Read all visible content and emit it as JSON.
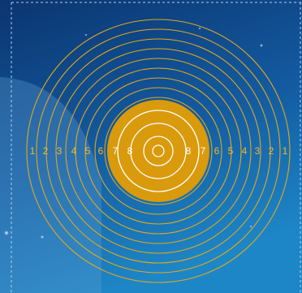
{
  "target": {
    "rings_left": [
      "1",
      "2",
      "3",
      "4",
      "5",
      "6",
      "7",
      "8"
    ],
    "rings_right": [
      "8",
      "7",
      "6",
      "5",
      "4",
      "3",
      "2",
      "1"
    ],
    "colors": {
      "ring_line": "#e0a81a",
      "black_area": "#d99a0c",
      "inner_line": "#ffffff",
      "outer_label": "#f3b82a",
      "inner_label": "#ffffff",
      "background_top": "#0b3570",
      "background_bottom": "#1d86c6"
    }
  }
}
